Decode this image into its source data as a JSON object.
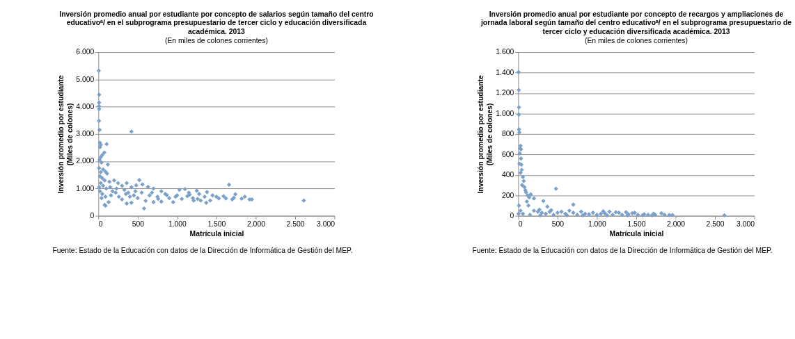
{
  "chart_data": [
    {
      "type": "scatter",
      "title": "Inversión promedio anual por estudiante por concepto de salarios según tamaño del centro\neducativoᵃ/ en el subprograma presupuestario de tercer ciclo y educación diversificada\nacadémica. 2013",
      "subtitle": "(En miles de colones corrientes)",
      "xlabel": "Matrícula inicial",
      "ylabel": "Inversión promedio por estudiante\n(Miles de colones)",
      "annotations": [
        "Fuente: Estado de la Educación con datos de la Dirección de Informática de Gestión del MEP."
      ],
      "marker": "diamond",
      "grid": "y",
      "legend": false,
      "xlim": [
        0,
        3000
      ],
      "xticks": [
        0,
        500,
        {
          "value": 1000,
          "label": "1.000"
        },
        {
          "value": 1500,
          "label": "1.500"
        },
        {
          "value": 2000,
          "label": "2.000"
        },
        {
          "value": 2500,
          "label": "2.500"
        },
        {
          "value": 3000,
          "label": "3.000"
        }
      ],
      "ylim": [
        0,
        6000
      ],
      "yticks": [
        0,
        {
          "value": 1000,
          "label": "1.000"
        },
        {
          "value": 2000,
          "label": "2.000"
        },
        {
          "value": 3000,
          "label": "3.000"
        },
        {
          "value": 4000,
          "label": "4.000"
        },
        {
          "value": 5000,
          "label": "5.000"
        },
        {
          "value": 6000,
          "label": "6.000"
        }
      ],
      "series": [
        {
          "color": "#7ba1cb",
          "x": [
            5,
            10,
            10,
            8,
            10,
            8,
            15,
            420,
            20,
            30,
            20,
            105,
            75,
            50,
            30,
            15,
            40,
            120,
            10,
            60,
            30,
            90,
            110,
            20,
            50,
            80,
            140,
            200,
            250,
            30,
            60,
            100,
            150,
            10,
            300,
            360,
            420,
            520,
            560,
            480,
            630,
            700,
            20,
            50,
            90,
            80,
            90,
            130,
            40,
            180,
            220,
            260,
            300,
            350,
            360,
            420,
            400,
            450,
            500,
            550,
            580,
            600,
            650,
            700,
            750,
            800,
            800,
            850,
            900,
            950,
            1000,
            1030,
            1060,
            1100,
            1130,
            1150,
            1200,
            1210,
            1250,
            1280,
            1300,
            1350,
            1370,
            1380,
            1420,
            1450,
            1500,
            1530,
            1590,
            1620,
            1660,
            1700,
            1740,
            1720,
            1820,
            1860,
            1920,
            1950,
            2610,
            160,
            230,
            330,
            380,
            470,
            680,
            760,
            870,
            980,
            1160,
            1260
          ],
          "values": [
            5320,
            4440,
            4150,
            4020,
            3920,
            3480,
            3150,
            3090,
            2680,
            2600,
            2520,
            2630,
            2320,
            2230,
            2150,
            2050,
            1950,
            1880,
            1750,
            1700,
            1600,
            1620,
            1550,
            1450,
            1380,
            1300,
            1250,
            1300,
            1200,
            1200,
            1100,
            1000,
            1050,
            1050,
            1100,
            1200,
            1050,
            1310,
            1150,
            1120,
            1060,
            1000,
            900,
            800,
            700,
            400,
            370,
            500,
            650,
            900,
            850,
            700,
            600,
            800,
            450,
            480,
            700,
            750,
            650,
            850,
            270,
            550,
            750,
            500,
            700,
            900,
            520,
            800,
            650,
            500,
            750,
            950,
            620,
            980,
            720,
            850,
            650,
            560,
            920,
            800,
            560,
            700,
            480,
            870,
            560,
            750,
            700,
            640,
            720,
            640,
            1140,
            600,
            790,
            660,
            630,
            700,
            600,
            600,
            560,
            750,
            1000,
            950,
            850,
            900,
            850,
            620,
            760,
            700,
            780,
            620
          ]
        }
      ]
    },
    {
      "type": "scatter",
      "title": "Inversión promedio anual por estudiante por concepto de recargos y ampliaciones de\njornada laboral según tamaño del centro educativoᵃ/ en el subprograma presupuestario de\ntercer ciclo y educación diversificada académica. 2013",
      "subtitle": "(En miles de colones corrientes)",
      "xlabel": "Matrícula inicial",
      "ylabel": "Inversión promedio por estudiante\n(Miles de colones)",
      "annotations": [
        "Fuente: Estado de la Educación con datos de la Dirección de Informática de Gestión del MEP."
      ],
      "marker": "diamond",
      "grid": "y",
      "legend": false,
      "xlim": [
        0,
        3000
      ],
      "xticks": [
        0,
        500,
        {
          "value": 1000,
          "label": "1.000"
        },
        {
          "value": 1500,
          "label": "1.500"
        },
        {
          "value": 2000,
          "label": "2.000"
        },
        {
          "value": 2500,
          "label": "2.500"
        },
        {
          "value": 3000,
          "label": "3.000"
        }
      ],
      "ylim": [
        0,
        1600
      ],
      "yticks": [
        0,
        200,
        400,
        600,
        800,
        {
          "value": 1000,
          "label": "1.000"
        },
        {
          "value": 1200,
          "label": "1.200"
        },
        {
          "value": 1400,
          "label": "1.400"
        },
        {
          "value": 1600,
          "label": "1.600"
        }
      ],
      "series": [
        {
          "color": "#7ba1cb",
          "x": [
            5,
            8,
            10,
            8,
            10,
            15,
            30,
            25,
            35,
            20,
            35,
            15,
            40,
            45,
            30,
            60,
            70,
            50,
            80,
            90,
            100,
            120,
            140,
            160,
            200,
            110,
            130,
            10,
            30,
            5,
            60,
            480,
            320,
            700,
            370,
            200,
            250,
            300,
            350,
            400,
            450,
            500,
            550,
            600,
            650,
            700,
            750,
            800,
            850,
            900,
            950,
            1000,
            1050,
            1080,
            1100,
            1160,
            1200,
            1240,
            1280,
            1320,
            1370,
            1400,
            1450,
            1480,
            1520,
            1580,
            1600,
            1650,
            1700,
            1720,
            1740,
            1820,
            1860,
            1920,
            1960,
            2620,
            150,
            270,
            280,
            420,
            620,
            820,
            1130,
            1390
          ],
          "values": [
            1405,
            1230,
            1060,
            990,
            845,
            815,
            685,
            660,
            650,
            610,
            560,
            510,
            500,
            450,
            420,
            380,
            340,
            300,
            280,
            250,
            230,
            200,
            180,
            210,
            170,
            140,
            100,
            100,
            50,
            20,
            20,
            265,
            145,
            110,
            90,
            50,
            40,
            30,
            20,
            40,
            10,
            30,
            40,
            20,
            50,
            30,
            10,
            40,
            20,
            15,
            30,
            10,
            20,
            45,
            25,
            40,
            10,
            35,
            30,
            10,
            35,
            15,
            25,
            30,
            10,
            5,
            15,
            10,
            5,
            20,
            10,
            25,
            10,
            8,
            8,
            5,
            10,
            60,
            5,
            55,
            5,
            5,
            5,
            5
          ]
        }
      ]
    }
  ]
}
